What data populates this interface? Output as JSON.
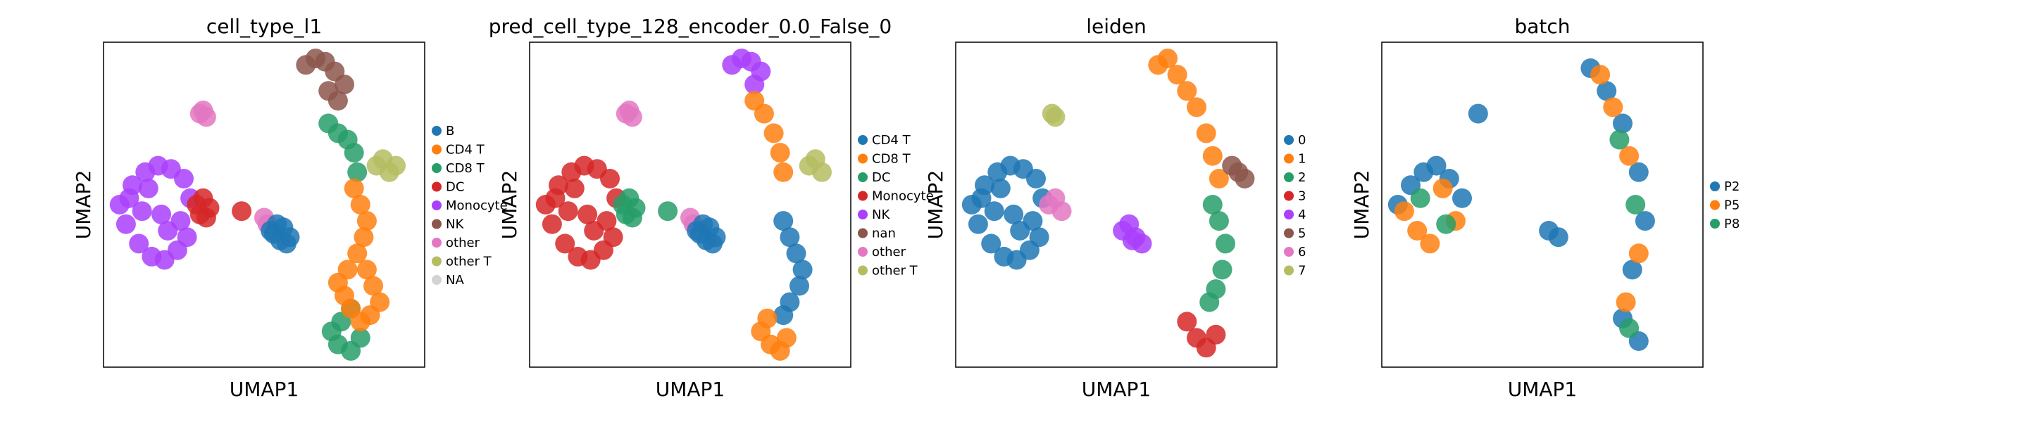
{
  "figure": {
    "panels": [
      {
        "id": "cell_type_l1",
        "title": "cell_type_l1",
        "xlabel": "UMAP1",
        "ylabel": "UMAP2",
        "legend": [
          {
            "name": "B",
            "color": "#1f77b4"
          },
          {
            "name": "CD4 T",
            "color": "#ff7f0e"
          },
          {
            "name": "CD8 T",
            "color": "#279e68"
          },
          {
            "name": "DC",
            "color": "#d62728"
          },
          {
            "name": "Monocyte",
            "color": "#aa40fc"
          },
          {
            "name": "NK",
            "color": "#8c564b"
          },
          {
            "name": "other",
            "color": "#e377c2"
          },
          {
            "name": "other T",
            "color": "#b5bd61"
          },
          {
            "name": "NA",
            "color": "#d3d3d3"
          }
        ]
      },
      {
        "id": "pred_cell_type",
        "title": "pred_cell_type_128_encoder_0.0_False_0",
        "xlabel": "UMAP1",
        "ylabel": "UMAP2",
        "legend": [
          {
            "name": "CD4 T",
            "color": "#1f77b4"
          },
          {
            "name": "CD8 T",
            "color": "#ff7f0e"
          },
          {
            "name": "DC",
            "color": "#279e68"
          },
          {
            "name": "Monocyte",
            "color": "#d62728"
          },
          {
            "name": "NK",
            "color": "#aa40fc"
          },
          {
            "name": "nan",
            "color": "#8c564b"
          },
          {
            "name": "other",
            "color": "#e377c2"
          },
          {
            "name": "other T",
            "color": "#b5bd61"
          }
        ]
      },
      {
        "id": "leiden",
        "title": "leiden",
        "xlabel": "UMAP1",
        "ylabel": "UMAP2",
        "legend": [
          {
            "name": "0",
            "color": "#1f77b4"
          },
          {
            "name": "1",
            "color": "#ff7f0e"
          },
          {
            "name": "2",
            "color": "#279e68"
          },
          {
            "name": "3",
            "color": "#d62728"
          },
          {
            "name": "4",
            "color": "#aa40fc"
          },
          {
            "name": "5",
            "color": "#8c564b"
          },
          {
            "name": "6",
            "color": "#e377c2"
          },
          {
            "name": "7",
            "color": "#b5bd61"
          }
        ]
      },
      {
        "id": "batch",
        "title": "batch",
        "xlabel": "UMAP1",
        "ylabel": "UMAP2",
        "legend": [
          {
            "name": "P2",
            "color": "#1f77b4"
          },
          {
            "name": "P5",
            "color": "#ff7f0e"
          },
          {
            "name": "P8",
            "color": "#279e68"
          }
        ]
      }
    ]
  },
  "chart_data": [
    {
      "type": "scatter",
      "title": "cell_type_l1",
      "xlabel": "UMAP1",
      "ylabel": "UMAP2",
      "grid": false,
      "legend_position": "right",
      "series": [
        {
          "name": "Monocyte",
          "color": "#aa40fc",
          "x": [
            0.05,
            0.09,
            0.13,
            0.17,
            0.21,
            0.25,
            0.27,
            0.07,
            0.11,
            0.15,
            0.19,
            0.23,
            0.12,
            0.18,
            0.24,
            0.08,
            0.14,
            0.2,
            0.26
          ],
          "y": [
            0.5,
            0.56,
            0.6,
            0.62,
            0.61,
            0.58,
            0.52,
            0.44,
            0.38,
            0.34,
            0.33,
            0.36,
            0.48,
            0.47,
            0.45,
            0.52,
            0.55,
            0.42,
            0.4
          ]
        },
        {
          "name": "DC",
          "color": "#d62728",
          "x": [
            0.29,
            0.31,
            0.33,
            0.3,
            0.32,
            0.43
          ],
          "y": [
            0.5,
            0.52,
            0.49,
            0.47,
            0.46,
            0.48
          ]
        },
        {
          "name": "other",
          "color": "#e377c2",
          "x": [
            0.3,
            0.31,
            0.32,
            0.5,
            0.51
          ],
          "y": [
            0.78,
            0.79,
            0.77,
            0.46,
            0.44
          ]
        },
        {
          "name": "B",
          "color": "#1f77b4",
          "x": [
            0.52,
            0.54,
            0.56,
            0.58,
            0.55,
            0.53,
            0.57
          ],
          "y": [
            0.42,
            0.44,
            0.43,
            0.4,
            0.39,
            0.41,
            0.38
          ]
        },
        {
          "name": "NK",
          "color": "#8c564b",
          "x": [
            0.63,
            0.66,
            0.69,
            0.72,
            0.75,
            0.7,
            0.73
          ],
          "y": [
            0.93,
            0.95,
            0.94,
            0.91,
            0.87,
            0.85,
            0.82
          ]
        },
        {
          "name": "CD8 T",
          "color": "#279e68",
          "x": [
            0.7,
            0.73,
            0.76,
            0.78,
            0.79,
            0.77,
            0.74,
            0.71,
            0.73,
            0.77,
            0.8
          ],
          "y": [
            0.75,
            0.72,
            0.7,
            0.66,
            0.6,
            0.18,
            0.14,
            0.11,
            0.07,
            0.05,
            0.09
          ]
        },
        {
          "name": "other T",
          "color": "#b5bd61",
          "x": [
            0.85,
            0.87,
            0.89,
            0.91
          ],
          "y": [
            0.62,
            0.64,
            0.6,
            0.62
          ]
        },
        {
          "name": "CD4 T",
          "color": "#ff7f0e",
          "x": [
            0.78,
            0.8,
            0.82,
            0.81,
            0.79,
            0.82,
            0.84,
            0.86,
            0.83,
            0.8,
            0.77,
            0.75,
            0.73,
            0.76
          ],
          "y": [
            0.55,
            0.5,
            0.45,
            0.4,
            0.35,
            0.3,
            0.25,
            0.2,
            0.16,
            0.14,
            0.18,
            0.22,
            0.26,
            0.3
          ]
        },
        {
          "name": "NA",
          "color": "#d3d3d3",
          "x": [],
          "y": []
        }
      ]
    },
    {
      "type": "scatter",
      "title": "pred_cell_type_128_encoder_0.0_False_0",
      "xlabel": "UMAP1",
      "ylabel": "UMAP2",
      "grid": false,
      "legend_position": "right",
      "series": [
        {
          "name": "Monocyte",
          "color": "#d62728",
          "x": [
            0.05,
            0.09,
            0.13,
            0.17,
            0.21,
            0.25,
            0.27,
            0.07,
            0.11,
            0.15,
            0.19,
            0.23,
            0.12,
            0.18,
            0.24,
            0.08,
            0.14,
            0.2,
            0.26
          ],
          "y": [
            0.5,
            0.56,
            0.6,
            0.62,
            0.61,
            0.58,
            0.52,
            0.44,
            0.38,
            0.34,
            0.33,
            0.36,
            0.48,
            0.47,
            0.45,
            0.52,
            0.55,
            0.42,
            0.4
          ]
        },
        {
          "name": "DC",
          "color": "#279e68",
          "x": [
            0.29,
            0.31,
            0.33,
            0.3,
            0.32,
            0.43
          ],
          "y": [
            0.5,
            0.52,
            0.49,
            0.47,
            0.46,
            0.48
          ]
        },
        {
          "name": "other",
          "color": "#e377c2",
          "x": [
            0.3,
            0.31,
            0.32,
            0.5,
            0.51
          ],
          "y": [
            0.78,
            0.79,
            0.77,
            0.46,
            0.44
          ]
        },
        {
          "name": "CD4 T",
          "color": "#1f77b4",
          "x": [
            0.52,
            0.54,
            0.56,
            0.58,
            0.55,
            0.53,
            0.57,
            0.79,
            0.81,
            0.83,
            0.85,
            0.84,
            0.81,
            0.79
          ],
          "y": [
            0.42,
            0.44,
            0.43,
            0.4,
            0.39,
            0.41,
            0.38,
            0.45,
            0.4,
            0.35,
            0.3,
            0.25,
            0.2,
            0.16
          ]
        },
        {
          "name": "NK",
          "color": "#aa40fc",
          "x": [
            0.63,
            0.66,
            0.69,
            0.72,
            0.7
          ],
          "y": [
            0.93,
            0.95,
            0.94,
            0.91,
            0.87
          ]
        },
        {
          "name": "CD8 T",
          "color": "#ff7f0e",
          "x": [
            0.7,
            0.73,
            0.76,
            0.78,
            0.79,
            0.74,
            0.72,
            0.75,
            0.78,
            0.8
          ],
          "y": [
            0.82,
            0.78,
            0.72,
            0.66,
            0.6,
            0.15,
            0.11,
            0.07,
            0.05,
            0.09
          ]
        },
        {
          "name": "other T",
          "color": "#b5bd61",
          "x": [
            0.87,
            0.89,
            0.91
          ],
          "y": [
            0.62,
            0.64,
            0.6
          ]
        },
        {
          "name": "nan",
          "color": "#8c564b",
          "x": [],
          "y": []
        }
      ]
    },
    {
      "type": "scatter",
      "title": "leiden",
      "xlabel": "UMAP1",
      "ylabel": "UMAP2",
      "grid": false,
      "legend_position": "right",
      "series": [
        {
          "name": "0",
          "color": "#1f77b4",
          "x": [
            0.05,
            0.09,
            0.13,
            0.17,
            0.21,
            0.25,
            0.27,
            0.07,
            0.11,
            0.15,
            0.19,
            0.23,
            0.12,
            0.18,
            0.24,
            0.08,
            0.14,
            0.2,
            0.26
          ],
          "y": [
            0.5,
            0.56,
            0.6,
            0.62,
            0.61,
            0.58,
            0.52,
            0.44,
            0.38,
            0.34,
            0.33,
            0.36,
            0.48,
            0.47,
            0.45,
            0.52,
            0.55,
            0.42,
            0.4
          ]
        },
        {
          "name": "6",
          "color": "#e377c2",
          "x": [
            0.29,
            0.31,
            0.33
          ],
          "y": [
            0.5,
            0.52,
            0.48
          ]
        },
        {
          "name": "7",
          "color": "#b5bd61",
          "x": [
            0.3,
            0.31
          ],
          "y": [
            0.78,
            0.77
          ]
        },
        {
          "name": "4",
          "color": "#aa40fc",
          "x": [
            0.52,
            0.54,
            0.56,
            0.58,
            0.55
          ],
          "y": [
            0.42,
            0.44,
            0.4,
            0.38,
            0.39
          ]
        },
        {
          "name": "1",
          "color": "#ff7f0e",
          "x": [
            0.63,
            0.66,
            0.69,
            0.72,
            0.75,
            0.78,
            0.8,
            0.82
          ],
          "y": [
            0.93,
            0.95,
            0.9,
            0.85,
            0.8,
            0.72,
            0.65,
            0.58
          ]
        },
        {
          "name": "5",
          "color": "#8c564b",
          "x": [
            0.86,
            0.88,
            0.9
          ],
          "y": [
            0.62,
            0.6,
            0.58
          ]
        },
        {
          "name": "2",
          "color": "#279e68",
          "x": [
            0.8,
            0.82,
            0.84,
            0.83,
            0.81,
            0.79
          ],
          "y": [
            0.5,
            0.45,
            0.38,
            0.3,
            0.24,
            0.2
          ]
        },
        {
          "name": "3",
          "color": "#d62728",
          "x": [
            0.72,
            0.75,
            0.78,
            0.81
          ],
          "y": [
            0.14,
            0.09,
            0.06,
            0.1
          ]
        }
      ]
    },
    {
      "type": "scatter",
      "title": "batch",
      "xlabel": "UMAP1",
      "ylabel": "UMAP2",
      "grid": false,
      "legend_position": "right",
      "series": [
        {
          "name": "P2",
          "color": "#1f77b4",
          "x": [
            0.05,
            0.09,
            0.13,
            0.17,
            0.21,
            0.25,
            0.3,
            0.52,
            0.55,
            0.65,
            0.7,
            0.75,
            0.8,
            0.82,
            0.78,
            0.75,
            0.8
          ],
          "y": [
            0.5,
            0.56,
            0.6,
            0.62,
            0.58,
            0.52,
            0.78,
            0.42,
            0.4,
            0.92,
            0.85,
            0.75,
            0.6,
            0.45,
            0.3,
            0.15,
            0.08
          ]
        },
        {
          "name": "P5",
          "color": "#ff7f0e",
          "x": [
            0.07,
            0.11,
            0.15,
            0.19,
            0.23,
            0.68,
            0.72,
            0.77,
            0.8,
            0.76
          ],
          "y": [
            0.48,
            0.42,
            0.38,
            0.55,
            0.45,
            0.9,
            0.8,
            0.65,
            0.35,
            0.2
          ]
        },
        {
          "name": "P8",
          "color": "#279e68",
          "x": [
            0.12,
            0.2,
            0.74,
            0.79,
            0.77
          ],
          "y": [
            0.52,
            0.44,
            0.7,
            0.5,
            0.12
          ]
        }
      ]
    }
  ]
}
